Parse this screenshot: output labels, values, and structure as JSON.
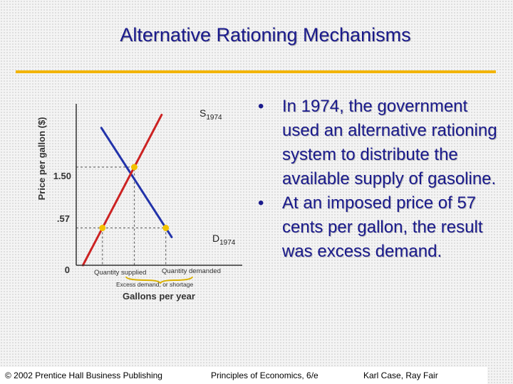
{
  "slide": {
    "title": "Alternative Rationing Mechanisms",
    "bullets": [
      "In 1974, the government used an alternative rationing system to distribute the available supply of gasoline.",
      "At an imposed price of 57 cents per gallon, the result was excess demand."
    ]
  },
  "chart_data": {
    "type": "line",
    "xlabel": "Gallons per year",
    "ylabel": "Price per gallon ($)",
    "y_tick_labels": [
      "0",
      ".57",
      "1.50"
    ],
    "y_ticks": [
      0,
      0.57,
      1.5
    ],
    "series": [
      {
        "name": "S",
        "subscript": "1974",
        "color": "#cc2222",
        "points": [
          [
            0.2,
            0
          ],
          [
            2.55,
            2.3
          ]
        ]
      },
      {
        "name": "D",
        "subscript": "1974",
        "color": "#2233aa",
        "points": [
          [
            0.75,
            2.1
          ],
          [
            2.85,
            0.43
          ]
        ]
      }
    ],
    "equilibrium": {
      "price": 1.5,
      "color": "#f2c200"
    },
    "price_ceiling": {
      "price": 0.57,
      "quantity_supplied_label": "Quantity supplied",
      "quantity_demanded_label": "Quantity demanded"
    },
    "annotation": "Excess demand, or shortage"
  },
  "footer": {
    "publisher": "© 2002 Prentice Hall Business Publishing",
    "book": "Principles of Economics, 6/e",
    "authors": "Karl Case, Ray Fair"
  }
}
